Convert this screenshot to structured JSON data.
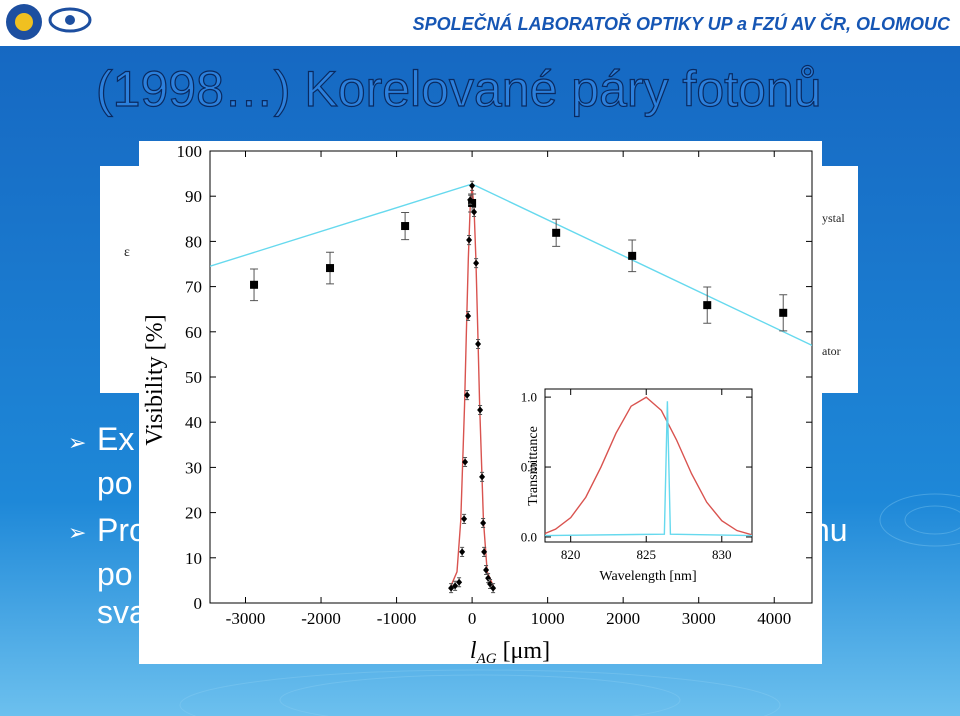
{
  "header": {
    "text": "SPOLEČNÁ LABORATOŘ OPTIKY UP a FZÚ AV ČR, OLOMOUC"
  },
  "title": "(1998…) Korelované páry fotonů",
  "bullets": [
    "Ex",
    "po",
    "Pro",
    "nu",
    "po",
    "sva"
  ],
  "background_figure": {
    "labels": [
      "ε",
      "ystal",
      "ator"
    ]
  },
  "chart_data": [
    {
      "type": "scatter",
      "xlabel": {
        "main": "l",
        "sub": "AG",
        "unit": "[μm]"
      },
      "ylabel": "Visibility [%]",
      "xlim": [
        -3470,
        4500
      ],
      "ylim": [
        0,
        100
      ],
      "xticks": [
        -3000,
        -2000,
        -1000,
        0,
        1000,
        2000,
        3000,
        4000
      ],
      "yticks": [
        0,
        10,
        20,
        30,
        40,
        50,
        60,
        70,
        80,
        90,
        100
      ],
      "series": [
        {
          "marker": "line",
          "color": "#66d9ee",
          "x": [
            -3470,
            0,
            4500
          ],
          "values": [
            74.5,
            92.7,
            57
          ]
        },
        {
          "marker": "line",
          "color": "#d9534f",
          "x": [
            -300,
            -200,
            -150,
            -100,
            -75,
            -50,
            -25,
            0,
            25,
            50,
            75,
            100,
            150,
            200,
            300
          ],
          "values": [
            3,
            6.9,
            18.3,
            43.7,
            60.4,
            76.2,
            87.7,
            92,
            87.7,
            76.2,
            60.4,
            43.7,
            18.3,
            6.9,
            3
          ]
        },
        {
          "marker": "square",
          "color": "#000000",
          "x": [
            -2887,
            -1881,
            -887,
            0,
            1113,
            2119,
            3113,
            4119
          ],
          "values": [
            70.4,
            74.1,
            83.4,
            88.5,
            81.9,
            76.8,
            65.9,
            64.2
          ],
          "errors": [
            3.5,
            3.5,
            3,
            2,
            3,
            3.5,
            4,
            4
          ]
        },
        {
          "marker": "diamond",
          "color": "#000000",
          "x": [
            -278,
            -225,
            -172,
            -132,
            -106,
            -93,
            -66,
            -53,
            -40,
            -26,
            0,
            26,
            53,
            79,
            106,
            132,
            146,
            159,
            185,
            212,
            238,
            278
          ],
          "values": [
            3.3,
            3.8,
            4.6,
            11.3,
            18.6,
            31.2,
            46,
            63.5,
            80.3,
            89.2,
            92.3,
            86.5,
            75.2,
            57.3,
            42.7,
            27.9,
            17.7,
            11.3,
            7.3,
            5.5,
            4.2,
            3.3
          ],
          "errors": [
            1,
            1,
            1,
            1,
            1,
            1,
            1,
            1,
            1,
            1,
            1,
            1,
            1,
            1,
            1,
            1,
            1,
            1,
            1,
            1,
            1,
            1
          ]
        }
      ]
    },
    {
      "type": "line",
      "xlabel": "Wavelength [nm]",
      "ylabel": "Transmittance",
      "xlim": [
        818.3,
        832
      ],
      "ylim": [
        -0.036,
        1.058
      ],
      "xticks": [
        820,
        825,
        830
      ],
      "yticks": [
        {
          "value": 0,
          "label": "0.0"
        },
        {
          "value": 0.5,
          "label": "0.5"
        },
        {
          "value": 1,
          "label": "1.0"
        }
      ],
      "series": [
        {
          "color": "#d9534f",
          "x": [
            818.3,
            819,
            820,
            821,
            822,
            823,
            824,
            825,
            826,
            827,
            828,
            829,
            830,
            831,
            832
          ],
          "values": [
            0.025,
            0.056,
            0.138,
            0.284,
            0.499,
            0.742,
            0.935,
            0.999,
            0.905,
            0.695,
            0.452,
            0.249,
            0.116,
            0.046,
            0.015
          ]
        },
        {
          "color": "#66d9ee",
          "x": [
            818.3,
            826.2,
            826.4,
            826.6,
            832
          ],
          "values": [
            0.01,
            0.02,
            0.97,
            0.02,
            0.01
          ]
        }
      ]
    }
  ]
}
